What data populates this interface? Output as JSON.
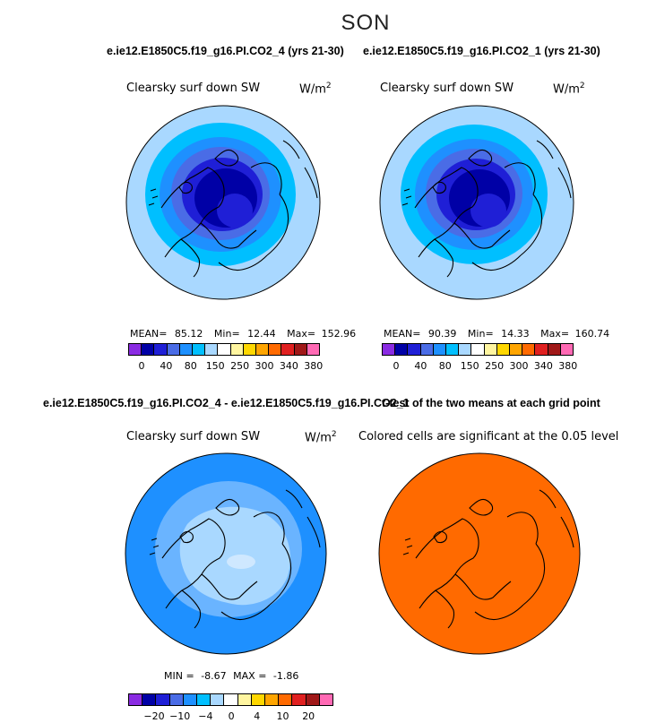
{
  "season": "SON",
  "top_titles": {
    "left": "e.ie12.E1850C5.f19_g16.PI.CO2_4 (yrs 21-30)",
    "right": "e.ie12.E1850C5.f19_g16.PI.CO2_1 (yrs 21-30)"
  },
  "diff_title": {
    "left": "e.ie12.E1850C5.f19_g16.PI.CO2_4 - e.ie12.E1850C5.f19_g16.PI.CO2_1",
    "right": "t-test of the two means at each grid point"
  },
  "panels": [
    {
      "variable": "Clearsky surf down SW",
      "units_base": "W/m",
      "units_exp": "2",
      "stats": {
        "mean_label": "MEAN=",
        "mean": "85.12",
        "min_label": "Min=",
        "min": "12.44",
        "max_label": "Max=",
        "max": "152.96"
      }
    },
    {
      "variable": "Clearsky surf down SW",
      "units_base": "W/m",
      "units_exp": "2",
      "stats": {
        "mean_label": "MEAN=",
        "mean": "90.39",
        "min_label": "Min=",
        "min": "14.33",
        "max_label": "Max=",
        "max": "160.74"
      }
    },
    {
      "variable": "Clearsky surf down SW",
      "units_base": "W/m",
      "units_exp": "2",
      "stats": {
        "min_label": "MIN =",
        "min": "-8.67",
        "max_label": "MAX =",
        "max": "-1.86"
      }
    },
    {
      "note": "Colored cells are significant at the 0.05 level"
    }
  ],
  "colorbar_main": {
    "colors": [
      "#8a2be2",
      "#0000a6",
      "#1f1fd6",
      "#4a6ce6",
      "#1e90ff",
      "#00bfff",
      "#a9d8ff",
      "#ffffff",
      "#fff5a0",
      "#ffd700",
      "#ffa500",
      "#ff6a00",
      "#e02020",
      "#a01818",
      "#ff69b4"
    ],
    "labels": [
      "0",
      "40",
      "80",
      "150",
      "250",
      "300",
      "340",
      "380"
    ]
  },
  "colorbar_diff": {
    "colors": [
      "#8a2be2",
      "#0000a6",
      "#1f1fd6",
      "#4a6ce6",
      "#1e90ff",
      "#00bfff",
      "#a9d8ff",
      "#ffffff",
      "#fff5a0",
      "#ffd700",
      "#ffa500",
      "#ff6a00",
      "#e02020",
      "#a01818",
      "#ff69b4"
    ],
    "labels": [
      "-20",
      "-10",
      "-4",
      "0",
      "4",
      "10",
      "20"
    ]
  },
  "map_colors": {
    "outer": "#a9d8ff",
    "ring2": "#00bfff",
    "ring3": "#1e90ff",
    "ring4": "#4a6ce6",
    "ring5": "#1f1fd6",
    "core": "#0000a6",
    "diff_outer": "#1e90ff",
    "diff_mid": "#6ab4ff",
    "diff_inner": "#a9d8ff",
    "diff_center": "#cfe8ff",
    "ttest_fill": "#ff6a00"
  }
}
